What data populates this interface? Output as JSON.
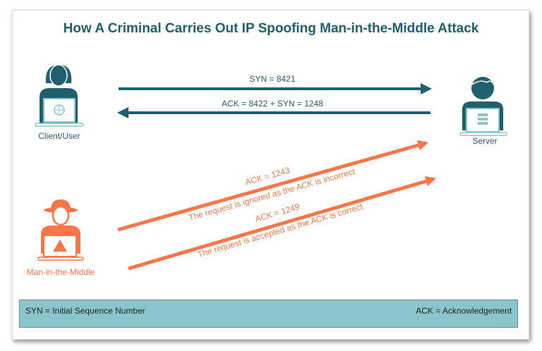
{
  "title": "How A Criminal Carries Out IP Spoofing Man-in-the-Middle Attack",
  "actors": {
    "client": {
      "label": "Client/User",
      "icon": "woman-laptop-globe-icon"
    },
    "server": {
      "label": "Server",
      "icon": "man-laptop-server-icon"
    },
    "attacker": {
      "label": "Man-in-the-Middle",
      "icon": "hacker-laptop-skull-icon"
    }
  },
  "messages": [
    {
      "text": "SYN = 8421",
      "direction": "client-to-server"
    },
    {
      "text": "ACK = 8422 + SYN = 1248",
      "direction": "server-to-client"
    },
    {
      "text": "ACK = 1243",
      "note": "The request is ignored as the ACK is incorrect",
      "direction": "attacker-to-server"
    },
    {
      "text": "ACK = 1249",
      "note": "The request is accepted as the ACK is correct",
      "direction": "attacker-to-server"
    }
  ],
  "legend": {
    "syn": "SYN = Initial Sequence Number",
    "ack": "ACK = Acknowledgement"
  },
  "colors": {
    "teal": "#1f5f6e",
    "orange": "#fa7547",
    "light_teal": "#89c5cb"
  }
}
